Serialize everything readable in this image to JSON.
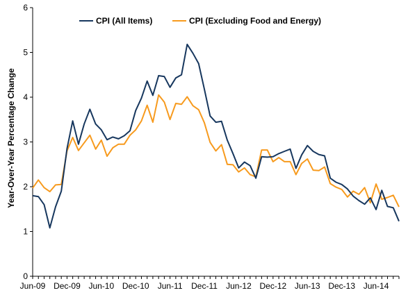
{
  "chart_data": {
    "type": "line",
    "ylabel": "Year-Over-Year Percentage Change",
    "xlabel": "",
    "ylim": [
      0,
      6
    ],
    "yticks": [
      0,
      1,
      2,
      3,
      4,
      5,
      6
    ],
    "x": [
      "2009-06",
      "2009-07",
      "2009-08",
      "2009-09",
      "2009-10",
      "2009-11",
      "2009-12",
      "2010-01",
      "2010-02",
      "2010-03",
      "2010-04",
      "2010-05",
      "2010-06",
      "2010-07",
      "2010-08",
      "2010-09",
      "2010-10",
      "2010-11",
      "2010-12",
      "2011-01",
      "2011-02",
      "2011-03",
      "2011-04",
      "2011-05",
      "2011-06",
      "2011-07",
      "2011-08",
      "2011-09",
      "2011-10",
      "2011-11",
      "2011-12",
      "2012-01",
      "2012-02",
      "2012-03",
      "2012-04",
      "2012-05",
      "2012-06",
      "2012-07",
      "2012-08",
      "2012-09",
      "2012-10",
      "2012-11",
      "2012-12",
      "2013-01",
      "2013-02",
      "2013-03",
      "2013-04",
      "2013-05",
      "2013-06",
      "2013-07",
      "2013-08",
      "2013-09",
      "2013-10",
      "2013-11",
      "2013-12",
      "2014-01",
      "2014-02",
      "2014-03",
      "2014-04",
      "2014-05",
      "2014-06",
      "2014-07",
      "2014-08",
      "2014-09",
      "2014-10"
    ],
    "xtick_labels": [
      "Jun-09",
      "Dec-09",
      "Jun-10",
      "Dec-10",
      "Jun-11",
      "Dec-11",
      "Jun-12",
      "Dec-12",
      "Jun-13",
      "Dec-13",
      "Jun-14"
    ],
    "xtick_indices": [
      0,
      6,
      12,
      18,
      24,
      30,
      36,
      42,
      48,
      54,
      60
    ],
    "legend": "top-center",
    "grid": false,
    "series": [
      {
        "name": "CPI (All Items)",
        "color": "#17375e",
        "values": [
          1.8,
          1.78,
          1.6,
          1.08,
          1.55,
          1.9,
          2.85,
          3.47,
          2.95,
          3.4,
          3.73,
          3.4,
          3.27,
          3.05,
          3.11,
          3.07,
          3.14,
          3.25,
          3.7,
          3.98,
          4.36,
          4.04,
          4.48,
          4.46,
          4.22,
          4.43,
          4.5,
          5.18,
          4.98,
          4.75,
          4.18,
          3.58,
          3.44,
          3.46,
          3.04,
          2.74,
          2.42,
          2.55,
          2.47,
          2.19,
          2.67,
          2.66,
          2.67,
          2.74,
          2.79,
          2.84,
          2.41,
          2.71,
          2.92,
          2.79,
          2.72,
          2.69,
          2.19,
          2.1,
          2.05,
          1.95,
          1.79,
          1.69,
          1.61,
          1.75,
          1.49,
          1.92,
          1.56,
          1.53,
          1.23
        ]
      },
      {
        "name": "CPI (Excluding Food and Energy)",
        "color": "#f79a1d",
        "values": [
          1.97,
          2.15,
          1.98,
          1.89,
          2.04,
          2.05,
          2.8,
          3.1,
          2.81,
          2.98,
          3.15,
          2.84,
          3.04,
          2.68,
          2.87,
          2.95,
          2.95,
          3.15,
          3.27,
          3.47,
          3.82,
          3.44,
          4.05,
          3.89,
          3.5,
          3.86,
          3.84,
          4.01,
          3.81,
          3.72,
          3.43,
          2.99,
          2.8,
          2.94,
          2.5,
          2.49,
          2.33,
          2.42,
          2.27,
          2.22,
          2.82,
          2.82,
          2.56,
          2.65,
          2.56,
          2.56,
          2.27,
          2.52,
          2.62,
          2.37,
          2.36,
          2.44,
          2.07,
          1.99,
          1.94,
          1.77,
          1.9,
          1.83,
          1.98,
          1.64,
          2.06,
          1.72,
          1.76,
          1.81,
          1.55
        ]
      }
    ]
  }
}
